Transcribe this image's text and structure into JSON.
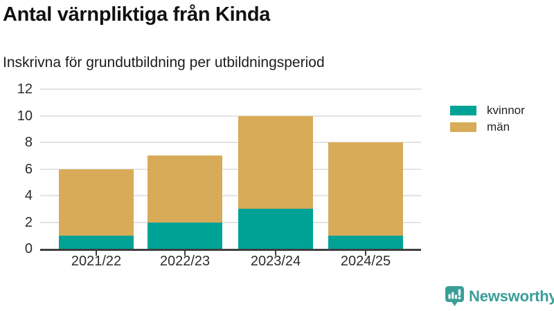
{
  "title": "Antal värnpliktiga från Kinda",
  "subtitle": "Inskrivna för grundutbildning per utbildningsperiod",
  "chart_data": {
    "type": "bar",
    "stacked": true,
    "title": "Antal värnpliktiga från Kinda",
    "subtitle": "Inskrivna för grundutbildning per utbildningsperiod",
    "categories": [
      "2021/22",
      "2022/23",
      "2023/24",
      "2024/25"
    ],
    "series": [
      {
        "name": "kvinnor",
        "color": "#00a296",
        "values": [
          1,
          2,
          3,
          1
        ]
      },
      {
        "name": "män",
        "color": "#d8ab58",
        "values": [
          5,
          5,
          7,
          7
        ]
      }
    ],
    "stack_totals": [
      6,
      7,
      10,
      8
    ],
    "xlabel": "",
    "ylabel": "",
    "ylim": [
      0,
      12
    ],
    "yticks": [
      0,
      2,
      4,
      6,
      8,
      10,
      12
    ],
    "grid": true,
    "legend_position": "right-top"
  },
  "branding": {
    "logo_text": "Newsworthy",
    "logo_color": "#3a9e98",
    "logo_icon": "bar-chart-speech-bubble-icon"
  },
  "colors": {
    "background": "#ffffff",
    "kvinnor": "#00a296",
    "man": "#d8ab58",
    "gridline": "#e3e3e3",
    "axis": "#3f3f3f",
    "title_text": "#111111",
    "tick_text": "#2b2b2b"
  }
}
